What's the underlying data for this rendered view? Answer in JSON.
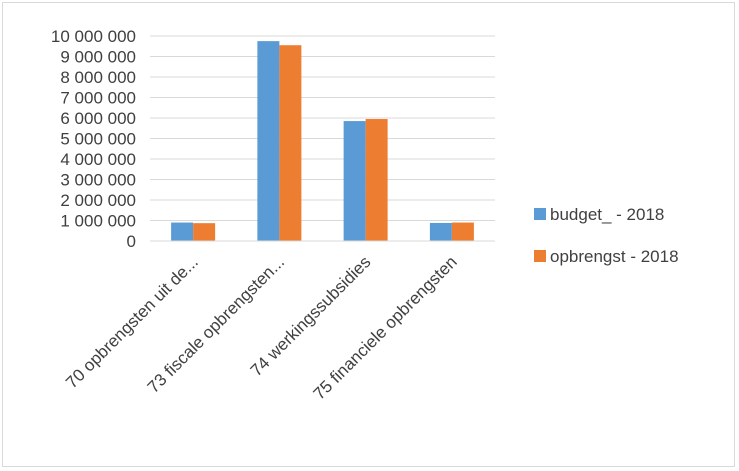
{
  "chart_data": {
    "type": "bar",
    "title": "",
    "xlabel": "",
    "ylabel": "",
    "categories": [
      "70 opbrengsten uit de...",
      "73 fiscale opbrengsten...",
      "74 werkingssubsidies",
      "75 financiele opbrengsten"
    ],
    "series": [
      {
        "name": "budget_ - 2018",
        "color": "#5b9bd5",
        "values": [
          900000,
          9750000,
          5850000,
          880000
        ]
      },
      {
        "name": "opbrengst - 2018",
        "color": "#ed7d31",
        "values": [
          870000,
          9550000,
          5950000,
          900000
        ]
      }
    ],
    "ylim": [
      0,
      10000000
    ],
    "yticks": [
      {
        "value": 0,
        "label": "0"
      },
      {
        "value": 1000000,
        "label": "1 000 000"
      },
      {
        "value": 2000000,
        "label": "2 000 000"
      },
      {
        "value": 3000000,
        "label": "3 000 000"
      },
      {
        "value": 4000000,
        "label": "4 000 000"
      },
      {
        "value": 5000000,
        "label": "5 000 000"
      },
      {
        "value": 6000000,
        "label": "6 000 000"
      },
      {
        "value": 7000000,
        "label": "7 000 000"
      },
      {
        "value": 8000000,
        "label": "8 000 000"
      },
      {
        "value": 9000000,
        "label": "9 000 000"
      },
      {
        "value": 10000000,
        "label": "10 000 000"
      }
    ],
    "grid": true,
    "legend_position": "right"
  }
}
